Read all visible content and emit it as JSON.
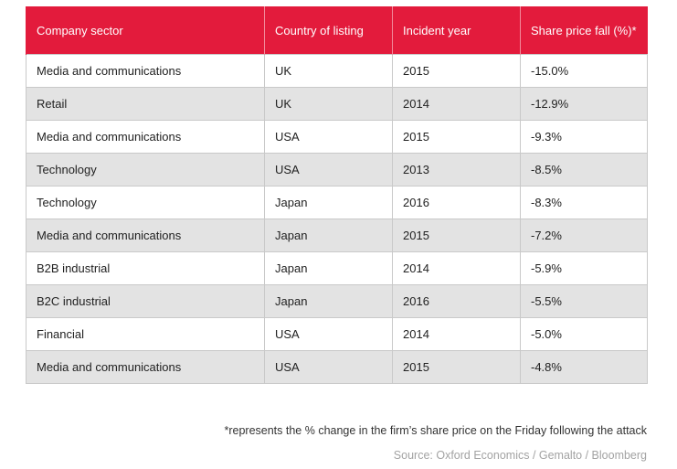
{
  "table": {
    "headers": [
      "Company sector",
      "Country of listing",
      "Incident year",
      "Share price fall (%)*"
    ],
    "rows": [
      [
        "Media and communications",
        "UK",
        "2015",
        "-15.0%"
      ],
      [
        "Retail",
        "UK",
        "2014",
        "-12.9%"
      ],
      [
        "Media and communications",
        "USA",
        "2015",
        "-9.3%"
      ],
      [
        "Technology",
        "USA",
        "2013",
        "-8.5%"
      ],
      [
        "Technology",
        "Japan",
        "2016",
        "-8.3%"
      ],
      [
        "Media and communications",
        "Japan",
        "2015",
        "-7.2%"
      ],
      [
        "B2B industrial",
        "Japan",
        "2014",
        "-5.9%"
      ],
      [
        "B2C industrial",
        "Japan",
        "2016",
        "-5.5%"
      ],
      [
        "Financial",
        "USA",
        "2014",
        "-5.0%"
      ],
      [
        "Media and communications",
        "USA",
        "2015",
        "-4.8%"
      ]
    ]
  },
  "footnote": "*represents the % change in the firm’s share price on the Friday following the attack",
  "source": "Source: Oxford Economics / Gemalto / Bloomberg",
  "colors": {
    "header_bg": "#e31b3c",
    "header_text": "#ffffff",
    "stripe_bg": "#e3e3e3",
    "source_text": "#a3a3a3"
  }
}
